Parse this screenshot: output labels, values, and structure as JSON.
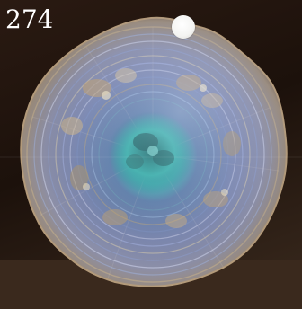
{
  "photo": {
    "lot_number": "274",
    "subject": "carnival-glass-bowl",
    "colors": {
      "background": "#1c110b",
      "glass_base": "#6b6f8c",
      "iridescent_blue": "#8fa3c8",
      "iridescent_gold": "#c8a46a",
      "center_teal": "#3fb7b0",
      "sticker": "#ffffff"
    }
  }
}
